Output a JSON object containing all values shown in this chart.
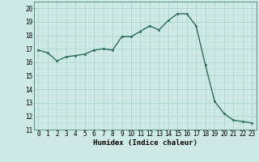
{
  "x": [
    0,
    1,
    2,
    3,
    4,
    5,
    6,
    7,
    8,
    9,
    10,
    11,
    12,
    13,
    14,
    15,
    16,
    17,
    18,
    19,
    20,
    21,
    22,
    23
  ],
  "y": [
    16.9,
    16.7,
    16.1,
    16.4,
    16.5,
    16.6,
    16.9,
    17.0,
    16.9,
    17.9,
    17.9,
    18.3,
    18.7,
    18.4,
    19.1,
    19.6,
    19.6,
    18.7,
    15.8,
    13.1,
    12.2,
    11.7,
    11.6,
    11.5
  ],
  "line_color": "#2e6b5e",
  "marker": "o",
  "marker_size": 1.8,
  "bg_color": "#ceeae6",
  "grid_major_color": "#aacfca",
  "grid_minor_color": "#bcddd9",
  "xlabel": "Humidex (Indice chaleur)",
  "ylim": [
    11,
    20.5
  ],
  "xlim": [
    -0.5,
    23.5
  ],
  "yticks": [
    11,
    12,
    13,
    14,
    15,
    16,
    17,
    18,
    19,
    20
  ],
  "xticks": [
    0,
    1,
    2,
    3,
    4,
    5,
    6,
    7,
    8,
    9,
    10,
    11,
    12,
    13,
    14,
    15,
    16,
    17,
    18,
    19,
    20,
    21,
    22,
    23
  ],
  "xlabel_fontsize": 6.5,
  "tick_fontsize": 5.5,
  "line_width": 1.0
}
